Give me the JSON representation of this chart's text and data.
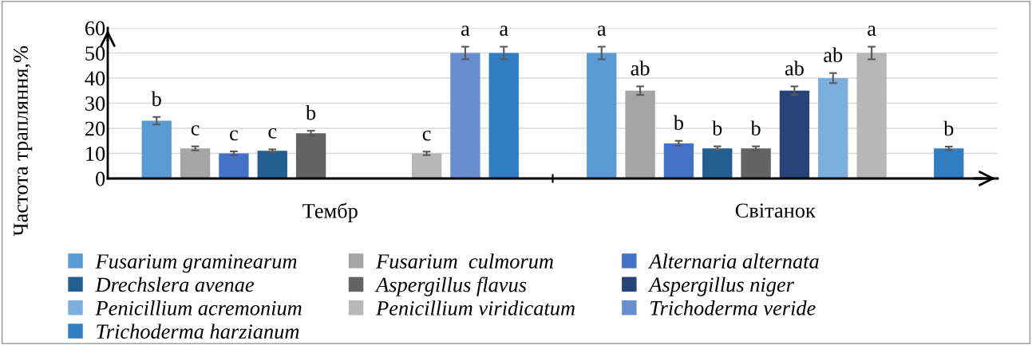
{
  "chart_data": {
    "type": "bar",
    "ylabel": "Частота трапляння,%",
    "categories": [
      "Тембр",
      "Світанок"
    ],
    "ylim": [
      0,
      60
    ],
    "yticks": [
      0,
      10,
      20,
      30,
      40,
      50,
      60
    ],
    "grid": "y",
    "legend": "bottom",
    "series": [
      {
        "name": "Fusarium graminearum",
        "color": "#5b9bd5",
        "values": [
          23,
          50
        ],
        "errors": [
          1.5,
          2.5
        ],
        "value_labels": [
          "b",
          "a"
        ]
      },
      {
        "name": "Fusarium  culmorum",
        "color": "#a5a5a5",
        "values": [
          12,
          35
        ],
        "errors": [
          0.8,
          1.7
        ],
        "value_labels": [
          "c",
          "ab"
        ]
      },
      {
        "name": "Alternaria alternata",
        "color": "#4472c4",
        "values": [
          10,
          14
        ],
        "errors": [
          0.8,
          1
        ],
        "value_labels": [
          "c",
          "b"
        ]
      },
      {
        "name": "Drechslera avenae",
        "color": "#255e91",
        "values": [
          11,
          12
        ],
        "errors": [
          0.6,
          0.8
        ],
        "value_labels": [
          "c",
          "b"
        ]
      },
      {
        "name": "Aspergillus flavus",
        "color": "#636363",
        "values": [
          18,
          12
        ],
        "errors": [
          1,
          0.8
        ],
        "value_labels": [
          "b",
          "b"
        ]
      },
      {
        "name": "Aspergillus niger",
        "color": "#264478",
        "values": [
          null,
          35
        ],
        "errors": [
          null,
          1.7
        ],
        "value_labels": [
          null,
          "ab"
        ]
      },
      {
        "name": "Penicillium acremonium",
        "color": "#7cafdd",
        "values": [
          null,
          40
        ],
        "errors": [
          null,
          2
        ],
        "value_labels": [
          null,
          "ab"
        ]
      },
      {
        "name": "Penicillium viridicatum",
        "color": "#b7b7b7",
        "values": [
          10,
          50
        ],
        "errors": [
          0.7,
          2.5
        ],
        "value_labels": [
          "c",
          "a"
        ]
      },
      {
        "name": "Trichoderma veride",
        "color": "#698ed0",
        "values": [
          50,
          null
        ],
        "errors": [
          2.5,
          null
        ],
        "value_labels": [
          "a",
          null
        ]
      },
      {
        "name": "Trichoderma harzianum",
        "color": "#327dc2",
        "values": [
          50,
          12
        ],
        "errors": [
          2.5,
          0.7
        ],
        "value_labels": [
          "a",
          "b"
        ]
      }
    ]
  }
}
